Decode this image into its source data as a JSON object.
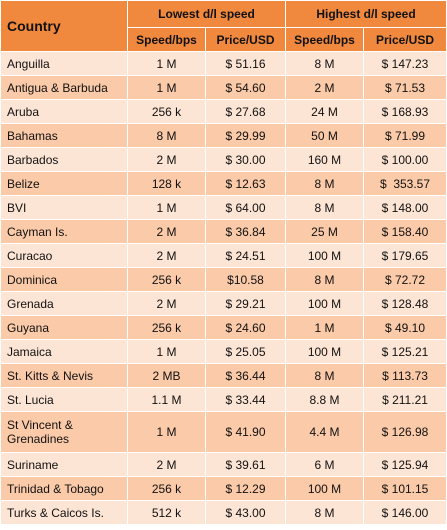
{
  "header": {
    "country": "Country",
    "groups": [
      "Lowest d/l speed",
      "Highest d/l speed"
    ],
    "subheaders": [
      "Speed/bps",
      "Price/USD",
      "Speed/bps",
      "Price/USD"
    ]
  },
  "table": {
    "rows": [
      [
        "Anguilla",
        "1 M",
        "$ 51.16",
        "8 M",
        "$ 147.23"
      ],
      [
        "Antigua & Barbuda",
        "1 M",
        "$ 54.60",
        "2 M",
        "$ 71.53"
      ],
      [
        "Aruba",
        "256 k",
        "$ 27.68",
        "24 M",
        "$ 168.93"
      ],
      [
        "Bahamas",
        "8 M",
        "$ 29.99",
        "50 M",
        "$ 71.99"
      ],
      [
        "Barbados",
        "2 M",
        "$ 30.00",
        "160 M",
        "$ 100.00"
      ],
      [
        "Belize",
        "128 k",
        "$ 12.63",
        "8 M",
        "$  353.57"
      ],
      [
        "BVI",
        "1 M",
        "$ 64.00",
        "8 M",
        "$ 148.00"
      ],
      [
        "Cayman Is.",
        "2 M",
        "$ 36.84",
        "25 M",
        "$ 158.40"
      ],
      [
        "Curacao",
        "2 M",
        "$ 24.51",
        "100 M",
        "$ 179.65"
      ],
      [
        "Dominica",
        "256 k",
        "$10.58",
        "8 M",
        "$ 72.72"
      ],
      [
        "Grenada",
        "2 M",
        "$ 29.21",
        "100 M",
        "$ 128.48"
      ],
      [
        "Guyana",
        "256 k",
        "$ 24.60",
        "1 M",
        "$ 49.10"
      ],
      [
        "Jamaica",
        "1 M",
        "$ 25.05",
        "100 M",
        "$ 125.21"
      ],
      [
        "St. Kitts & Nevis",
        "2 MB",
        "$ 36.44",
        "8 M",
        "$ 113.73"
      ],
      [
        "St. Lucia",
        "1.1 M",
        "$ 33.44",
        "8.8 M",
        "$ 211.21"
      ],
      [
        "St Vincent & Grenadines",
        "1 M",
        "$ 41.90",
        "4.4 M",
        "$ 126.98"
      ],
      [
        "Suriname",
        "2 M",
        "$ 39.61",
        "6 M",
        "$ 125.94"
      ],
      [
        "Trinidad & Tobago",
        "256 k",
        "$ 12.29",
        "100 M",
        "$ 101.15"
      ],
      [
        "Turks & Caicos Is.",
        "512 k",
        "$ 43.00",
        "8 M",
        "$ 146.00"
      ]
    ]
  }
}
